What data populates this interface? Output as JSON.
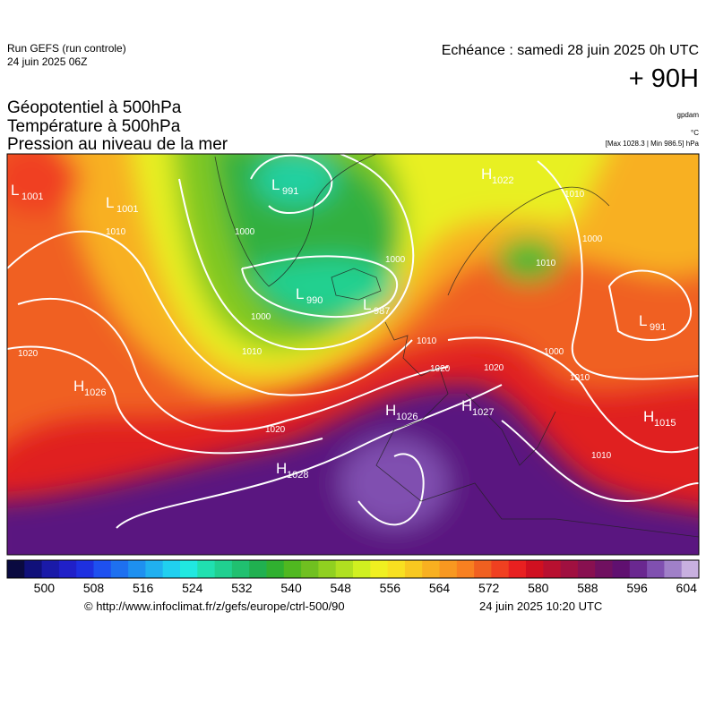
{
  "header": {
    "run": "Run GEFS (run controle)",
    "run_date": "24 juin 2025 06Z",
    "echeance": "Echéance : samedi 28 juin 2025 0h UTC",
    "lead": "+ 90H"
  },
  "titles": [
    "Géopotentiel à 500hPa",
    "Température à 500hPa",
    "Pression au niveau de la mer"
  ],
  "units": [
    "gpdam",
    "°C",
    "[Max 1028.3 | Min 986.5] hPa"
  ],
  "pressure_centers": [
    {
      "kind": "L",
      "value": 1001
    },
    {
      "kind": "L",
      "value": 1001
    },
    {
      "kind": "L",
      "value": 991
    },
    {
      "kind": "L",
      "value": 990
    },
    {
      "kind": "L",
      "value": 987
    },
    {
      "kind": "H",
      "value": 1022
    },
    {
      "kind": "L",
      "value": 991
    },
    {
      "kind": "H",
      "value": 1026
    },
    {
      "kind": "H",
      "value": 1026
    },
    {
      "kind": "H",
      "value": 1027
    },
    {
      "kind": "H",
      "value": 1015
    },
    {
      "kind": "H",
      "value": 1028
    }
  ],
  "contour_labels": [
    1010,
    1000,
    1000,
    1000,
    1010,
    1010,
    1020,
    1020,
    1000,
    1010,
    1010,
    1020,
    1010,
    1000,
    1020,
    1010
  ],
  "colorbar": {
    "range": [
      494,
      606
    ],
    "ticks": [
      500,
      508,
      516,
      524,
      532,
      540,
      548,
      556,
      564,
      572,
      580,
      588,
      596,
      604
    ],
    "colors": [
      "#0a0a40",
      "#10107a",
      "#1a1aa8",
      "#2020c8",
      "#1e30e0",
      "#1e50f0",
      "#1e70f0",
      "#1e90f0",
      "#20b0f0",
      "#20d0f0",
      "#20e8e0",
      "#20e0b0",
      "#20d090",
      "#20c070",
      "#20b050",
      "#30b030",
      "#50b820",
      "#70c020",
      "#90d020",
      "#b0e020",
      "#d0f020",
      "#f0f020",
      "#f8e020",
      "#f8c820",
      "#f8b020",
      "#f89820",
      "#f88020",
      "#f06020",
      "#f04020",
      "#e82020",
      "#d01020",
      "#b81030",
      "#a01040",
      "#881050",
      "#701060",
      "#601070",
      "#6a2890",
      "#8050b0",
      "#a080c8",
      "#c8b0e0"
    ]
  },
  "footer": {
    "url": "© http://www.infoclimat.fr/z/gefs/europe/ctrl-500/90",
    "issued": "24 juin 2025 10:20 UTC"
  }
}
